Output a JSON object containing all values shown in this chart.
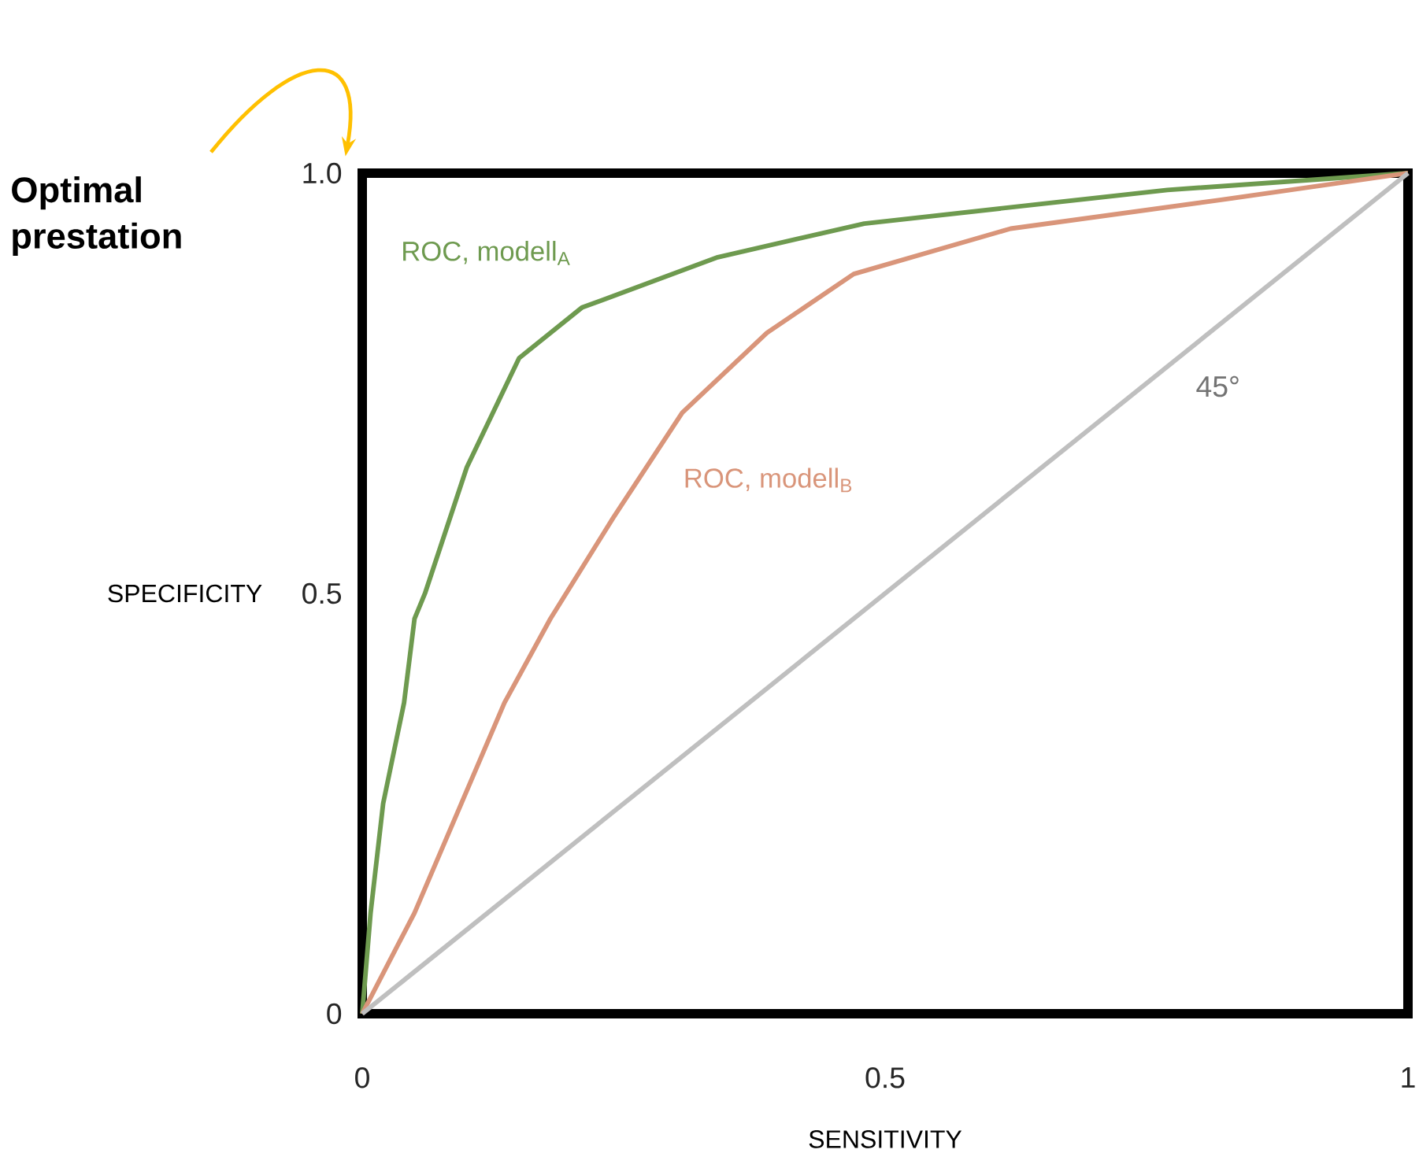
{
  "chart_data": {
    "type": "line",
    "xlabel": "SENSITIVITY",
    "ylabel": "SPECIFICITY",
    "xlim": [
      0,
      1
    ],
    "ylim": [
      0,
      1
    ],
    "xticks": [
      0,
      0.5,
      1
    ],
    "yticks": [
      0,
      0.5,
      {
        "value": 1,
        "label": "1.0"
      }
    ],
    "grid": false,
    "marker": "none",
    "line_style": "solid",
    "series": [
      {
        "name": "ROC, modell$_{A}$",
        "color": "#6e9a4f",
        "x": [
          0,
          0.008,
          0.02,
          0.04,
          0.05,
          0.06,
          0.1,
          0.15,
          0.21,
          0.34,
          0.48,
          0.77,
          1
        ],
        "values": [
          0,
          0.12,
          0.25,
          0.37,
          0.47,
          0.5,
          0.65,
          0.78,
          0.84,
          0.9,
          0.94,
          0.98,
          1
        ]
      },
      {
        "name": "ROC, modell$_{B}$",
        "color": "#d9957a",
        "x": [
          0,
          0.05,
          0.093,
          0.136,
          0.18,
          0.24,
          0.306,
          0.387,
          0.47,
          0.62,
          0.82,
          1
        ],
        "values": [
          0,
          0.12,
          0.245,
          0.37,
          0.47,
          0.59,
          0.715,
          0.81,
          0.88,
          0.934,
          0.968,
          1
        ]
      },
      {
        "color": "#bfbfbf",
        "x": [
          0,
          1
        ],
        "values": [
          0,
          1
        ]
      }
    ],
    "annotations": [
      "45°",
      "Optimal prestation"
    ]
  }
}
